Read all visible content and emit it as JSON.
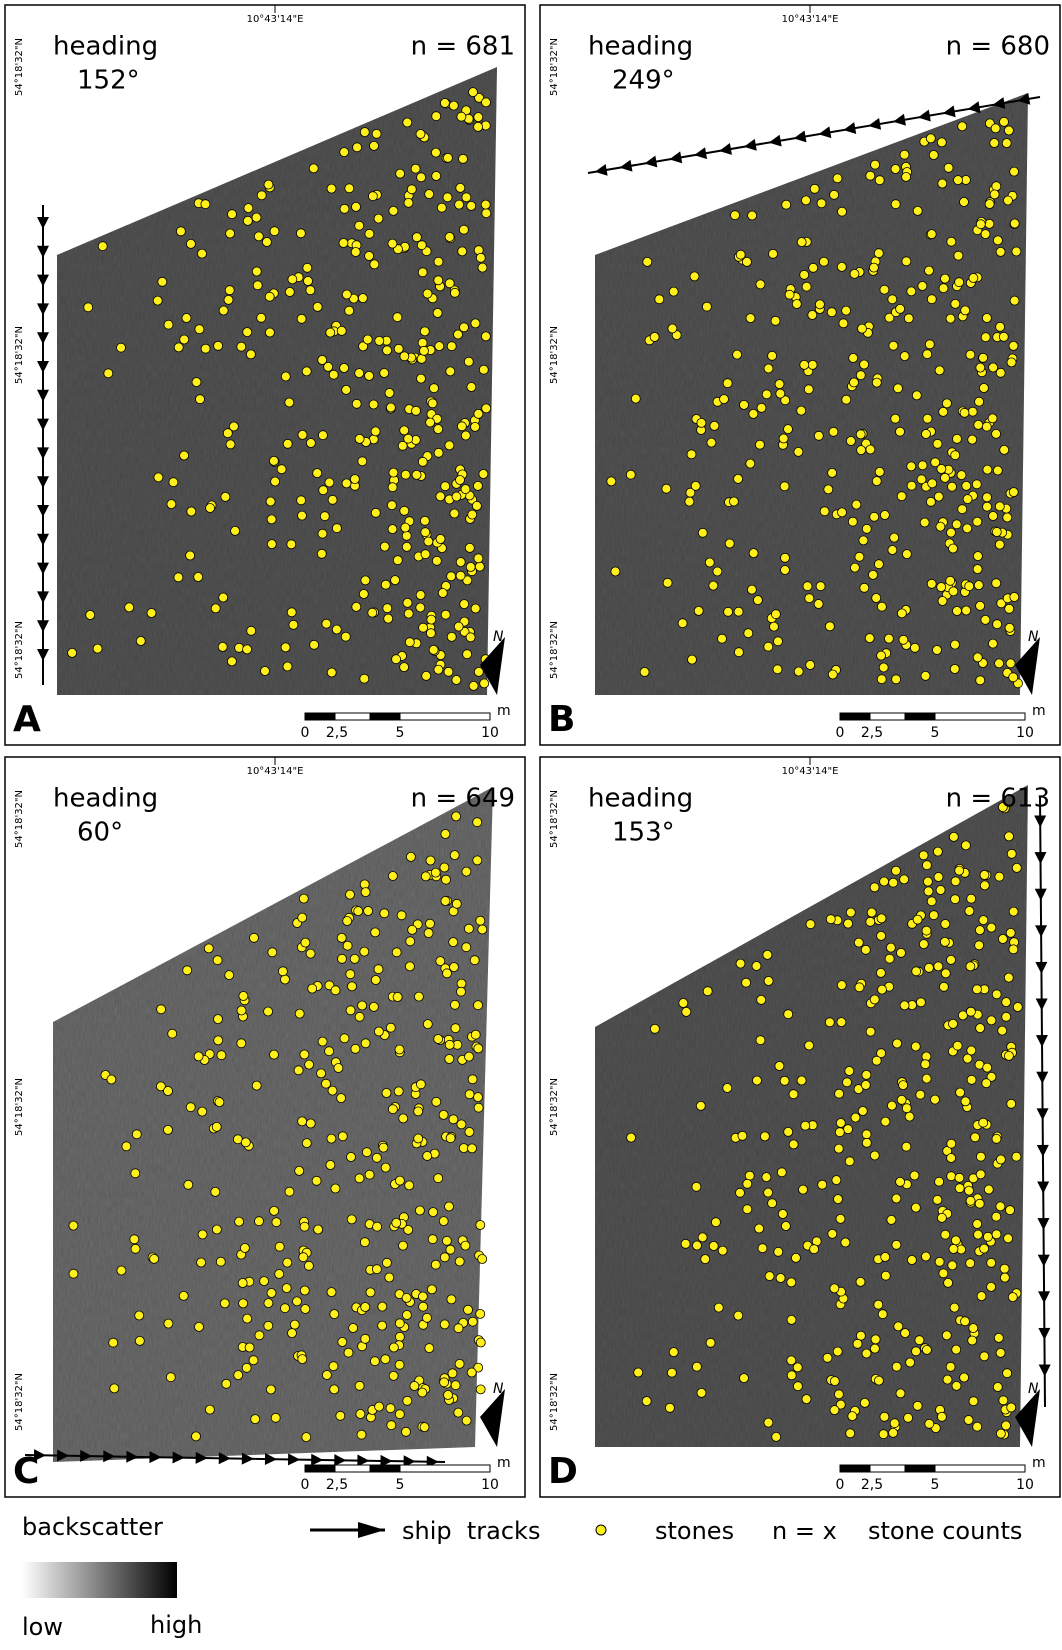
{
  "panels": [
    {
      "label": "A",
      "heading_label": "heading",
      "heading": "152°",
      "count": "n = 681",
      "longitude": "10°43'14\"E",
      "latitudes": [
        "54°18'32\"N",
        "54°18'32\"N",
        "54°18'32\"N"
      ],
      "scale_ticks": [
        "0",
        "2,5",
        "5",
        "10"
      ],
      "scale_unit": "m",
      "north": "N"
    },
    {
      "label": "B",
      "heading_label": "heading",
      "heading": "249°",
      "count": "n = 680",
      "longitude": "10°43'14\"E",
      "latitudes": [
        "54°18'32\"N",
        "54°18'32\"N",
        "54°18'32\"N"
      ],
      "scale_ticks": [
        "0",
        "2,5",
        "5",
        "10"
      ],
      "scale_unit": "m",
      "north": "N"
    },
    {
      "label": "C",
      "heading_label": "heading",
      "heading": "60°",
      "count": "n = 649",
      "longitude": "10°43'14\"E",
      "latitudes": [
        "54°18'32\"N",
        "54°18'32\"N",
        "54°18'32\"N"
      ],
      "scale_ticks": [
        "0",
        "2,5",
        "5",
        "10"
      ],
      "scale_unit": "m",
      "north": "N"
    },
    {
      "label": "D",
      "heading_label": "heading",
      "heading": "153°",
      "count": "n = 613",
      "longitude": "10°43'14\"E",
      "latitudes": [
        "54°18'32\"N",
        "54°18'32\"N",
        "54°18'32\"N"
      ],
      "scale_ticks": [
        "0",
        "2,5",
        "5",
        "10"
      ],
      "scale_unit": "m",
      "north": "N"
    }
  ],
  "legend": {
    "backscatter": "backscatter",
    "low": "low",
    "high": "high",
    "ship_tracks": "ship  tracks",
    "stones": "stones",
    "count_symbol": "n = x",
    "count_meaning": "stone counts"
  }
}
